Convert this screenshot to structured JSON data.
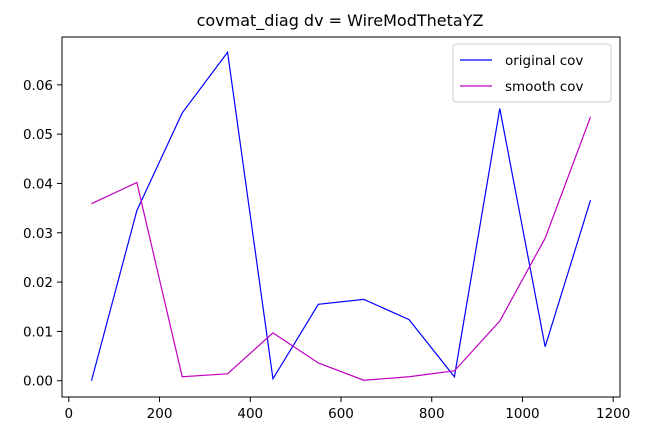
{
  "chart_data": {
    "type": "line",
    "title": "covmat_diag dv = WireModThetaYZ",
    "xlabel": "",
    "ylabel": "",
    "xlim": [
      -15,
      1215
    ],
    "ylim": [
      -0.0033,
      0.0697
    ],
    "xticks": [
      0,
      200,
      400,
      600,
      800,
      1000,
      1200
    ],
    "yticks": [
      0.0,
      0.01,
      0.02,
      0.03,
      0.04,
      0.05,
      0.06
    ],
    "xtick_labels": [
      "0",
      "200",
      "400",
      "600",
      "800",
      "1000",
      "1200"
    ],
    "ytick_labels": [
      "0.00",
      "0.01",
      "0.02",
      "0.03",
      "0.04",
      "0.05",
      "0.06"
    ],
    "grid": false,
    "legend_position": "top-right",
    "x": [
      50,
      150,
      250,
      350,
      450,
      550,
      650,
      750,
      850,
      950,
      1050,
      1150
    ],
    "series": [
      {
        "name": "original cov",
        "color": "#0000ff",
        "values": [
          0.0,
          0.0345,
          0.0543,
          0.0666,
          0.0004,
          0.0155,
          0.0165,
          0.0124,
          0.0008,
          0.0552,
          0.0069,
          0.0366
        ]
      },
      {
        "name": "smooth cov",
        "color": "#bf00bf",
        "values": [
          0.0359,
          0.0402,
          0.0008,
          0.0014,
          0.0097,
          0.0036,
          0.0001,
          0.0008,
          0.002,
          0.0121,
          0.0289,
          0.0535
        ]
      }
    ]
  }
}
